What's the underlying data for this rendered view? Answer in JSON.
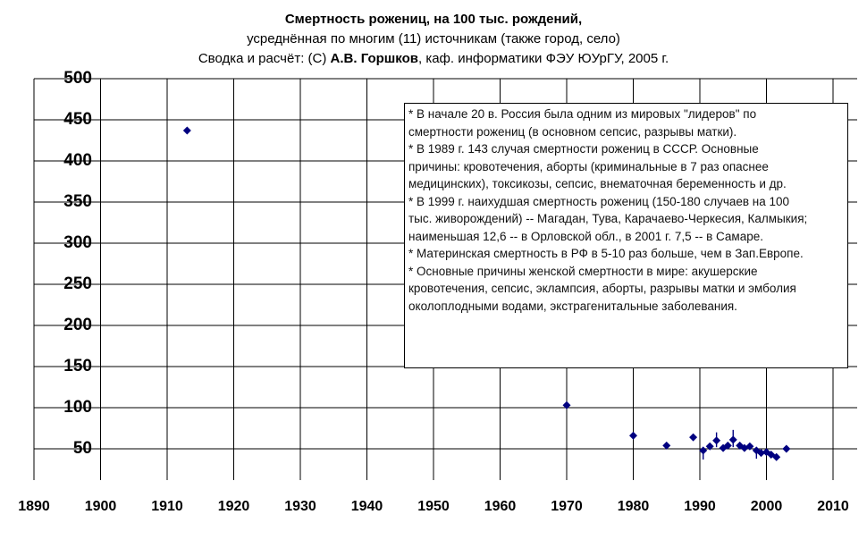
{
  "title": {
    "line1": "Смертность рожениц, на 100 тыс. рождений,",
    "line2": "усреднённая по многим (11) источникам (также город, село)",
    "line3_prefix": "Сводка и расчёт: (С) ",
    "line3_author": "А.В. Горшков",
    "line3_suffix": ", каф. информатики ФЭУ ЮУрГУ, 2005 г."
  },
  "annotation": {
    "lines": [
      "* В начале 20 в. Россия была одним из мировых \"лидеров\" по",
      "смертности рожениц (в основном сепсис, разрывы матки).",
      "* В 1989 г. 143 случая смертности рожениц в СССР. Основные",
      "причины: кровотечения, аборты (криминальные в 7 раз опаснее",
      "медицинских), токсикозы, сепсис, внематочная беременность и др.",
      "* В 1999 г. наихудшая смертность рожениц (150-180 случаев на 100",
      "тыс. живорождений) -- Магадан, Тува, Карачаево-Черкесия, Калмыкия;",
      "наименьшая 12,6 -- в Орловской обл., в 2001 г. 7,5 -- в Самаре.",
      "* Материнская смертность в РФ в 5-10 раз больше, чем в Зап.Европе.",
      "* Основные причины женской смертности в мире: акушерские",
      "кровотечения, сепсис, эклампсия, аборты, разрывы матки и эмболия",
      "околоплодными водами, экстрагенитальные заболевания."
    ]
  },
  "chart_data": {
    "type": "scatter",
    "title": "Смертность рожениц, на 100 тыс. рождений, усреднённая по многим (11) источникам (также город, село)",
    "credit": "Сводка и расчёт: (С) А.В. Горшков, каф. информатики ФЭУ ЮУрГУ, 2005 г.",
    "xlabel": "",
    "ylabel": "",
    "x_ticks": [
      1890,
      1900,
      1910,
      1920,
      1930,
      1940,
      1950,
      1960,
      1970,
      1980,
      1990,
      2000,
      2010
    ],
    "y_ticks": [
      50,
      100,
      150,
      200,
      250,
      300,
      350,
      400,
      450,
      500
    ],
    "xlim": [
      1890,
      2013.6
    ],
    "ylim": [
      12,
      500
    ],
    "grid": true,
    "legend": "none",
    "marker": "diamond",
    "marker_color": "#000080",
    "grid_color": "#000000",
    "series": [
      {
        "name": "Смертность рожениц, на 100 тыс. рождений",
        "points": [
          [
            1913,
            437
          ],
          [
            1970,
            103
          ],
          [
            1980,
            66
          ],
          [
            1985,
            54
          ],
          [
            1989,
            64
          ],
          [
            1990.5,
            48
          ],
          [
            1991.5,
            53
          ],
          [
            1992.5,
            60
          ],
          [
            1993.5,
            51
          ],
          [
            1994.2,
            54
          ],
          [
            1995,
            61
          ],
          [
            1996,
            54
          ],
          [
            1996.7,
            51
          ],
          [
            1997.5,
            53
          ],
          [
            1998.5,
            48
          ],
          [
            1999.2,
            45
          ],
          [
            2000,
            46
          ],
          [
            2000.7,
            43
          ],
          [
            2001.5,
            40
          ],
          [
            2003,
            50
          ]
        ]
      }
    ],
    "error_bars": [
      {
        "x": 1990.5,
        "low": 37,
        "high": 48
      },
      {
        "x": 1992.5,
        "low": 52,
        "high": 70
      },
      {
        "x": 1995,
        "low": 52,
        "high": 73
      },
      {
        "x": 1998.5,
        "low": 38,
        "high": 48
      }
    ]
  }
}
